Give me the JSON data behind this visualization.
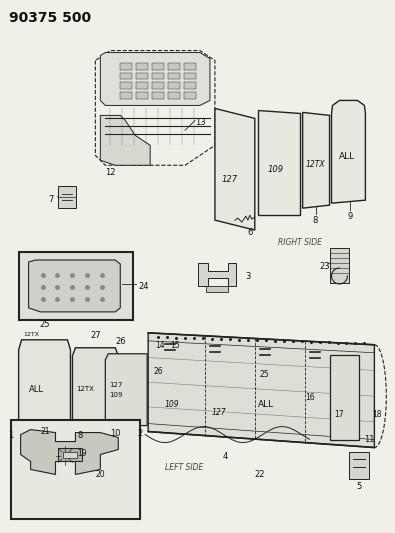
{
  "title": "90375 500",
  "bg": "#f0efe8",
  "lc": "#222222",
  "fig_w": 3.95,
  "fig_h": 5.33,
  "dpi": 100,
  "right_side": "RIGHT SIDE",
  "left_side": "LEFT SIDE"
}
